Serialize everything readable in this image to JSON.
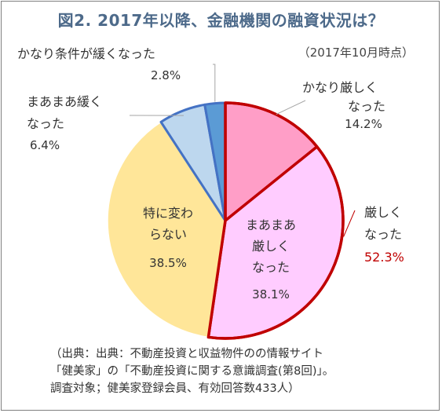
{
  "title": "図2.  2017年以降、金融機関の融資状況は？",
  "note": "（2017年10月時点）",
  "chart_data": {
    "type": "pie",
    "title": "図2.  2017年以降、金融機関の融資状況は？",
    "categories": [
      "かなり厳しくなった",
      "まあまあ厳しくなった",
      "特に変わらない",
      "まあまあ緩くなった",
      "かなり条件が緩くなった"
    ],
    "values": [
      14.2,
      38.1,
      38.5,
      6.4,
      2.8
    ],
    "value_labels": [
      "14.2%",
      "38.1%",
      "38.5%",
      "6.4%",
      "2.8%"
    ],
    "colors": [
      "#ff9ec7",
      "#ffccff",
      "#ffe699",
      "#bdd7ee",
      "#5b9bd5"
    ],
    "group": {
      "label": "厳しくなった",
      "value_label": "52.3%",
      "members": [
        0,
        1
      ],
      "outline_color": "#c00000",
      "value_color": "#c00000"
    },
    "light_side_outline_color": "#4472c4",
    "start_angle": "12 o'clock",
    "direction": "clockwise"
  },
  "labels": {
    "kanari_kibishiku": [
      "かなり厳しく",
      "なった"
    ],
    "mamaa_kibishiku": [
      "まあまあ",
      "厳しく",
      "なった"
    ],
    "kawaranai": [
      "特に変わ",
      "らない"
    ],
    "mamaa_yuruku": [
      "まあまあ緩く",
      "なった"
    ],
    "kanari_yuruku": [
      "かなり条件が緩くなった"
    ],
    "kibishiku_group": [
      "厳しく",
      "なった"
    ]
  },
  "source": {
    "line1": "（出典：出典：不動産投資と収益物件のの情報サイト",
    "line2": "「健美家」の「不動産投資に関する意識調査(第8回)」。",
    "line3": "調査対象；健美家登録会員、有効回答数433人）"
  }
}
